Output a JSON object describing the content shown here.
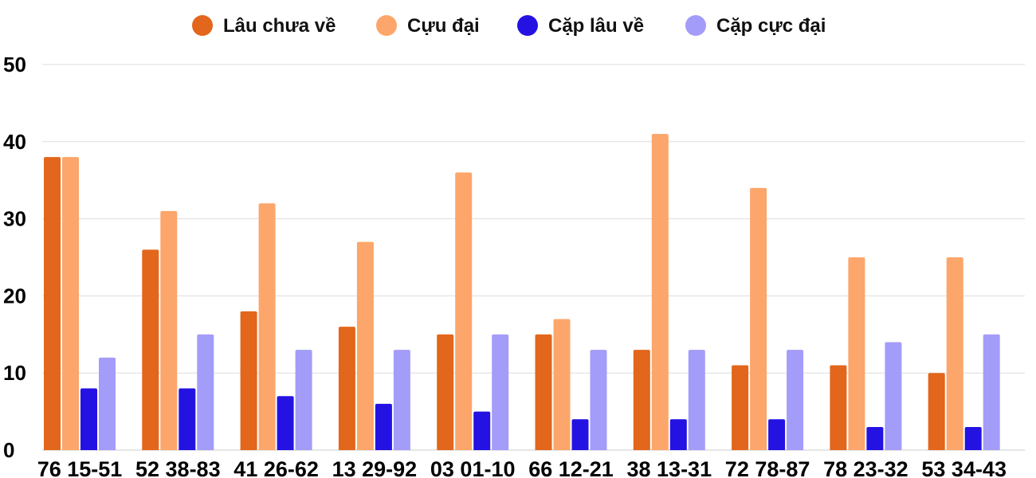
{
  "chart_data": {
    "type": "bar",
    "title": "",
    "xlabel": "",
    "ylabel": "",
    "ylim": [
      0,
      50
    ],
    "yticks": [
      0,
      10,
      20,
      30,
      40,
      50
    ],
    "grid": true,
    "legend_position": "top-center",
    "categories": [
      "76 15-51",
      "52 38-83",
      "41 26-62",
      "13 29-92",
      "03 01-10",
      "66 12-21",
      "38 13-31",
      "72 78-87",
      "78 23-32",
      "53 34-43"
    ],
    "series": [
      {
        "name": "Lâu chưa về",
        "color": "#e2661b",
        "values": [
          38,
          26,
          18,
          16,
          15,
          15,
          13,
          11,
          11,
          10
        ]
      },
      {
        "name": "Cựu đại",
        "color": "#fca66b",
        "values": [
          38,
          31,
          32,
          27,
          36,
          17,
          41,
          34,
          25,
          25
        ]
      },
      {
        "name": "Cặp lâu về",
        "color": "#2412e3",
        "values": [
          8,
          8,
          7,
          6,
          5,
          4,
          4,
          4,
          3,
          3
        ]
      },
      {
        "name": "Cặp cực đại",
        "color": "#a39cf8",
        "values": [
          12,
          15,
          13,
          13,
          15,
          13,
          13,
          13,
          14,
          15
        ]
      }
    ]
  }
}
